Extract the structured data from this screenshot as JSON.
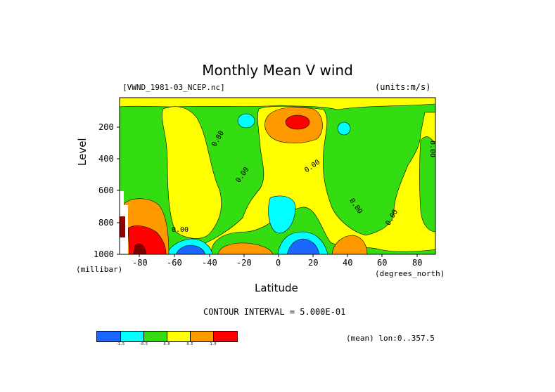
{
  "chart_data": {
    "type": "heatmap",
    "title": "Monthly Mean V wind",
    "dataset_label": "[VWND_1981-03_NCEP.nc]",
    "units_label": "(units:m/s)",
    "xlabel": "Latitude",
    "x_units": "(degrees_north)",
    "ylabel": "Level",
    "y_units": "(millibar)",
    "xlim": [
      -90,
      90
    ],
    "ylim": [
      1000,
      10
    ],
    "x_ticks": [
      -80,
      -60,
      -40,
      -20,
      0,
      20,
      40,
      60,
      80
    ],
    "y_ticks": [
      200,
      400,
      600,
      800,
      1000
    ],
    "contour_interval_text": "CONTOUR INTERVAL = 5.000E-01",
    "mean_note": "(mean) lon:0..357.5",
    "contour_labels": [
      "0.00",
      "0.00",
      "0.00",
      "0.00",
      "0.00",
      "0.00",
      "0.00",
      "0.00"
    ],
    "colorbar": {
      "levels": [
        "-1.5",
        "-0.5",
        "0.0",
        "0.5",
        "1.0"
      ],
      "colors": [
        "#1a66ff",
        "#00ffff",
        "#33dd11",
        "#ffff00",
        "#ff9900",
        "#ff0000"
      ]
    }
  }
}
